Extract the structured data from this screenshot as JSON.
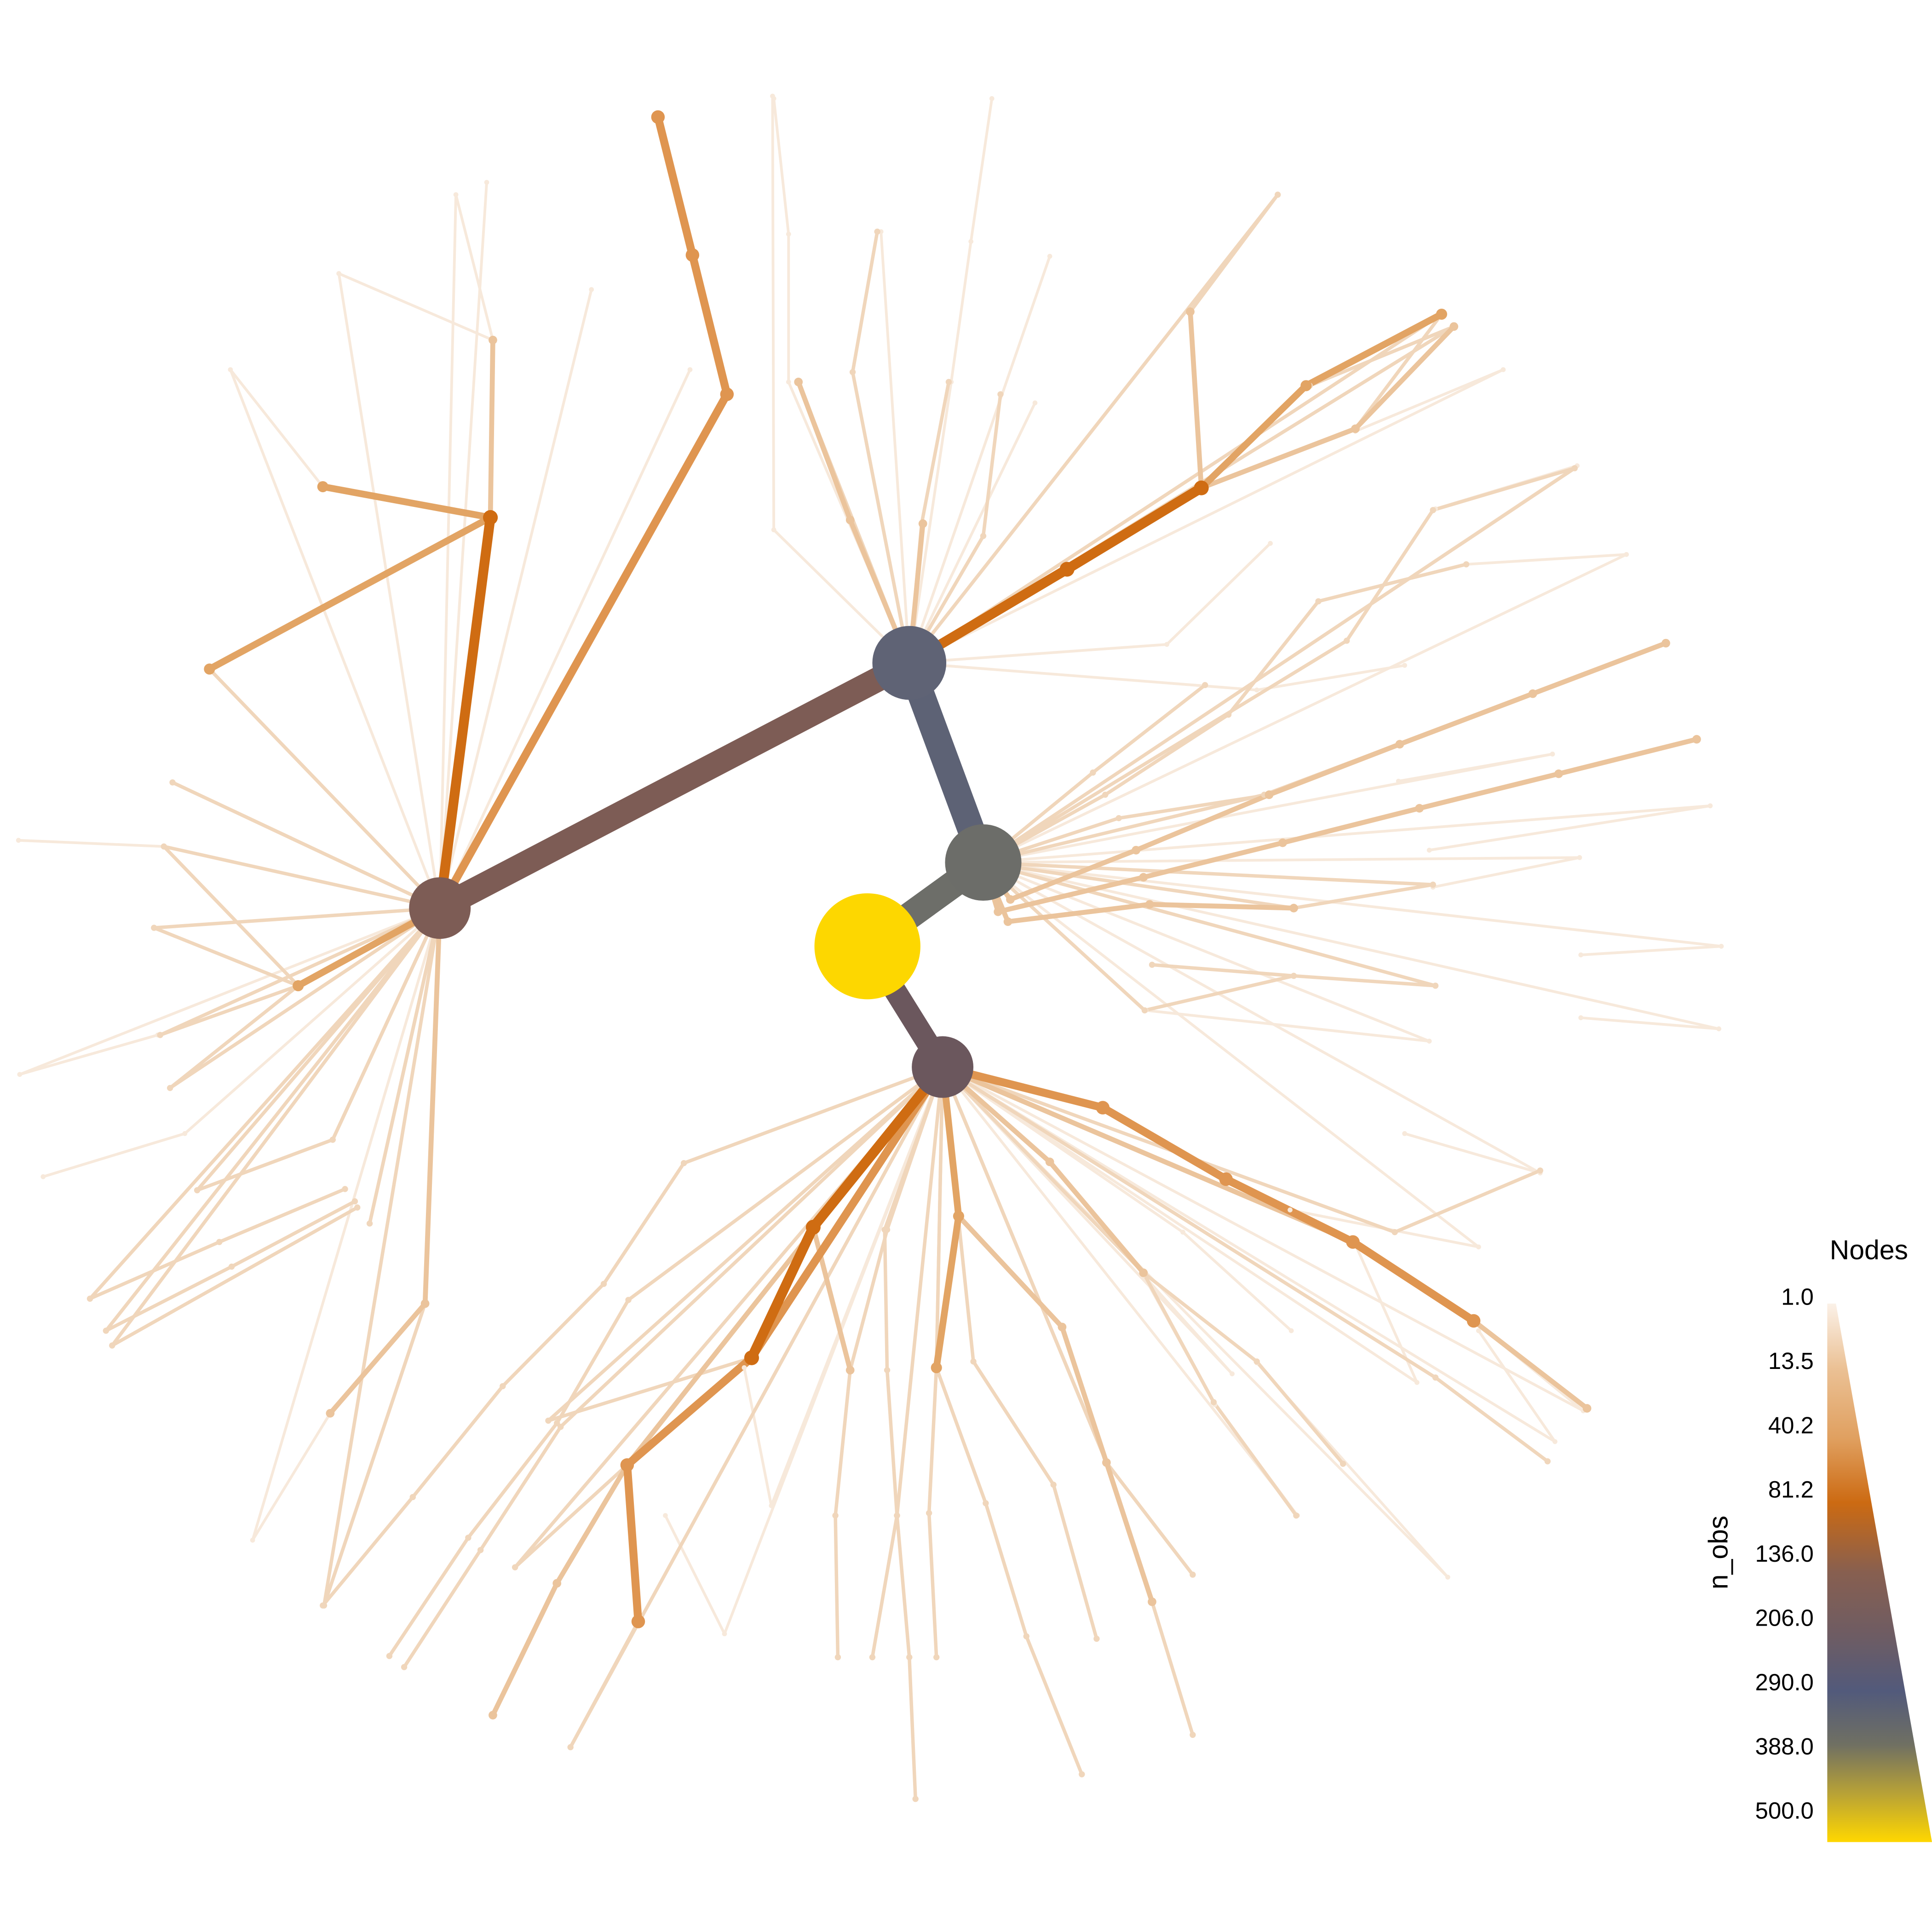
{
  "legend": {
    "title": "Nodes",
    "axis_label": "n_obs",
    "tick_labels": [
      "1.0",
      "13.5",
      "40.2",
      "81.2",
      "136.0",
      "206.0",
      "290.0",
      "388.0",
      "500.0"
    ],
    "ramp_colors": [
      "#faeee3",
      "#ecc196",
      "#df9a55",
      "#cc6d19",
      "#9a624a",
      "#6e5c60",
      "#565c7a",
      "#6e6c5e",
      "#b5a234",
      "#ffd700"
    ]
  },
  "diagram": {
    "root": {
      "id": "root",
      "n_obs": 500,
      "color": "#fdd700"
    }
  }
}
